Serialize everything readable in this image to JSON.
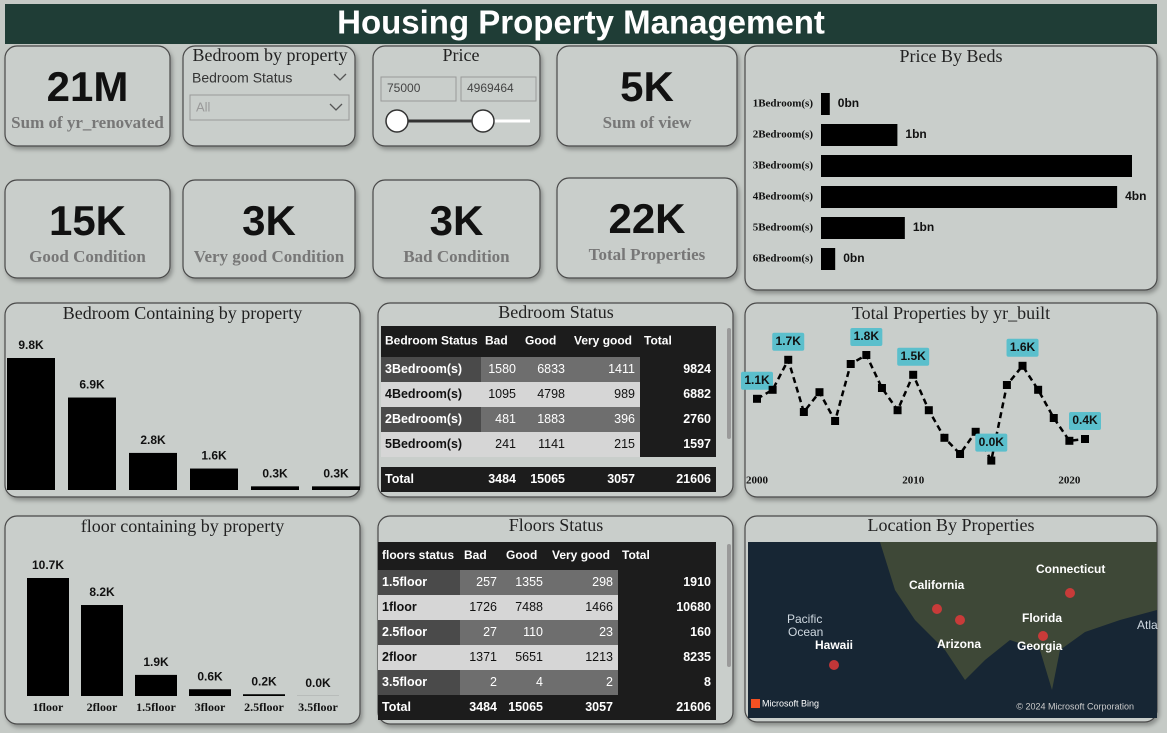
{
  "header": {
    "title": "Housing Property Management"
  },
  "kpis": [
    {
      "value": "21M",
      "label": "Sum of yr_renovated"
    },
    {
      "value": "5K",
      "label": "Sum of view"
    },
    {
      "value": "15K",
      "label": "Good Condition"
    },
    {
      "value": "3K",
      "label": "Very good Condition"
    },
    {
      "value": "3K",
      "label": "Bad Condition"
    },
    {
      "value": "22K",
      "label": "Total Properties"
    }
  ],
  "slicers": {
    "bedroom": {
      "title": "Bedroom by property",
      "field": "Bedroom Status",
      "selection": "All"
    },
    "price": {
      "title": "Price",
      "min": 75000,
      "max": 4969464
    }
  },
  "chart_data": [
    {
      "type": "hbar",
      "title": "Price By Beds",
      "categories": [
        "1Bedroom(s)",
        "2Bedroom(s)",
        "3Bedroom(s)",
        "4Bedroom(s)",
        "5Bedroom(s)",
        "6Bedroom(s)"
      ],
      "values": [
        0.13,
        1.13,
        4.6,
        4.38,
        1.24,
        0.21
      ],
      "value_labels": [
        "0bn",
        "1bn",
        null,
        "4bn",
        "1bn",
        "0bn"
      ],
      "color": "#000000"
    },
    {
      "type": "bar",
      "title": "Bedroom Containing by property",
      "values": [
        9.824,
        6.882,
        2.76,
        1.597,
        0.272,
        0.271
      ],
      "value_labels": [
        "9.8K",
        "6.9K",
        "2.8K",
        "1.6K",
        "0.3K",
        "0.3K"
      ],
      "color": "#000000"
    },
    {
      "type": "bar",
      "title": "floor containing by property",
      "categories": [
        "1floor",
        "2floor",
        "1.5floor",
        "3floor",
        "2.5floor",
        "3.5floor"
      ],
      "values": [
        10.68,
        8.235,
        1.91,
        0.613,
        0.16,
        0.008
      ],
      "value_labels": [
        "10.7K",
        "8.2K",
        "1.9K",
        "0.6K",
        "0.2K",
        "0.0K"
      ],
      "color": "#000000"
    },
    {
      "type": "line",
      "title": "Total Properties by yr_built",
      "x": [
        2000,
        2001,
        2002,
        2003,
        2004,
        2005,
        2006,
        2007,
        2008,
        2009,
        2010,
        2011,
        2012,
        2013,
        2014,
        2015,
        2016,
        2017,
        2018,
        2019,
        2020,
        2021
      ],
      "values": [
        1.07,
        1.22,
        1.72,
        0.85,
        1.18,
        0.7,
        1.65,
        1.8,
        1.25,
        0.88,
        1.47,
        0.88,
        0.42,
        0.15,
        0.52,
        0.04,
        1.3,
        1.62,
        1.22,
        0.75,
        0.37,
        0.4
      ],
      "value_labels": [
        "1.1K",
        null,
        "1.7K",
        null,
        null,
        null,
        null,
        "1.8K",
        null,
        null,
        "1.5K",
        null,
        null,
        null,
        null,
        "0.0K",
        null,
        "1.6K",
        null,
        null,
        null,
        "0.4K"
      ],
      "xlim": [
        2000,
        2021
      ],
      "xticks": [
        2000,
        2010,
        2020
      ],
      "color": "#000000",
      "label_color": "#5bbfcc"
    }
  ],
  "tables": [
    {
      "title": "Bedroom Status",
      "columns": [
        "Bedroom Status",
        "Bad",
        "Good",
        "Very good",
        "Total"
      ],
      "rows": [
        [
          "3Bedroom(s)",
          1580,
          6833,
          1411,
          9824
        ],
        [
          "4Bedroom(s)",
          1095,
          4798,
          989,
          6882
        ],
        [
          "2Bedroom(s)",
          481,
          1883,
          396,
          2760
        ],
        [
          "5Bedroom(s)",
          241,
          1141,
          215,
          1597
        ]
      ],
      "total": [
        "Total",
        3484,
        15065,
        3057,
        21606
      ]
    },
    {
      "title": "Floors Status",
      "columns": [
        "floors status",
        "Bad",
        "Good",
        "Very good",
        "Total"
      ],
      "rows": [
        [
          "1.5floor",
          257,
          1355,
          298,
          1910
        ],
        [
          "1floor",
          1726,
          7488,
          1466,
          10680
        ],
        [
          "2.5floor",
          27,
          110,
          23,
          160
        ],
        [
          "2floor",
          1371,
          5651,
          1213,
          8235
        ],
        [
          "3.5floor",
          2,
          4,
          2,
          8
        ]
      ],
      "total": [
        "Total",
        3484,
        15065,
        3057,
        21606
      ]
    }
  ],
  "map": {
    "title": "Location By Properties",
    "labels": [
      "California",
      "Connecticut",
      "Florida",
      "Arizona",
      "Georgia",
      "Hawaii",
      "Pacific",
      "Ocean",
      "Atla"
    ],
    "provider": "Microsoft Bing",
    "attribution": "© 2024 Microsoft Corporation"
  }
}
